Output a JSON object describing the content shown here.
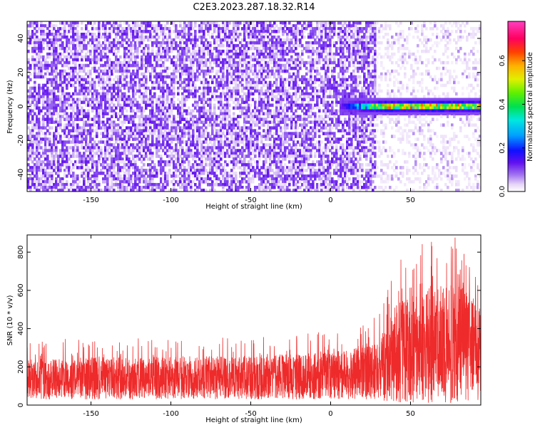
{
  "title": "C2E3.2023.287.18.32.R14",
  "chart_data": [
    {
      "type": "heatmap",
      "xlabel": "Height of straight line (km)",
      "ylabel": "Frequency (Hz)",
      "xlim": [
        -190,
        94
      ],
      "ylim": [
        -50,
        50
      ],
      "xticks": [
        "-150",
        "-100",
        "-50",
        "0",
        "50"
      ],
      "xtick_values": [
        -150,
        -100,
        -50,
        0,
        50
      ],
      "yticks": [
        "-40",
        "-20",
        "0",
        "20",
        "40"
      ],
      "ytick_values": [
        -40,
        -20,
        0,
        20,
        40
      ],
      "colorbar": {
        "label": "Normalized spectral amplitude",
        "ticks": [
          "0.0",
          "0.2",
          "0.4",
          "0.6"
        ],
        "tick_values": [
          0.0,
          0.2,
          0.4,
          0.6
        ],
        "range": [
          0,
          0.78
        ]
      },
      "regions": [
        {
          "x_range": [
            -190,
            28
          ],
          "freq_range": [
            -50,
            50
          ],
          "level": "purple noise, amplitude ~0.02-0.12"
        },
        {
          "x_range": [
            28,
            94
          ],
          "freq_range": [
            -50,
            50
          ],
          "level": "sparse faint noise, amplitude ~0.01-0.04"
        },
        {
          "x_range": [
            5,
            94
          ],
          "freq_range": [
            -4,
            4
          ],
          "level": "signal band at 0 Hz, amplitude up to ~0.75"
        }
      ]
    },
    {
      "type": "line",
      "xlabel": "Height of straight line (km)",
      "ylabel": "SNR (10 * v/v)",
      "xlim": [
        -190,
        94
      ],
      "ylim": [
        0,
        890
      ],
      "xticks": [
        "-150",
        "-100",
        "-50",
        "0",
        "50"
      ],
      "xtick_values": [
        -150,
        -100,
        -50,
        0,
        50
      ],
      "yticks": [
        "0",
        "200",
        "400",
        "600",
        "800"
      ],
      "ytick_values": [
        0,
        200,
        400,
        600,
        800
      ],
      "color": "#ee2a2a",
      "envelope": [
        {
          "x": -190,
          "low": 30,
          "typical_high": 240,
          "peak": 340
        },
        {
          "x": -150,
          "low": 30,
          "typical_high": 250,
          "peak": 350
        },
        {
          "x": -100,
          "low": 30,
          "typical_high": 255,
          "peak": 350
        },
        {
          "x": -50,
          "low": 30,
          "typical_high": 260,
          "peak": 360
        },
        {
          "x": 0,
          "low": 30,
          "typical_high": 275,
          "peak": 390
        },
        {
          "x": 30,
          "low": 30,
          "typical_high": 320,
          "peak": 470
        },
        {
          "x": 40,
          "low": 10,
          "typical_high": 520,
          "peak": 760
        },
        {
          "x": 60,
          "low": 10,
          "typical_high": 620,
          "peak": 870
        },
        {
          "x": 80,
          "low": 10,
          "typical_high": 640,
          "peak": 890
        },
        {
          "x": 94,
          "low": 10,
          "typical_high": 540,
          "peak": 730
        }
      ]
    }
  ]
}
